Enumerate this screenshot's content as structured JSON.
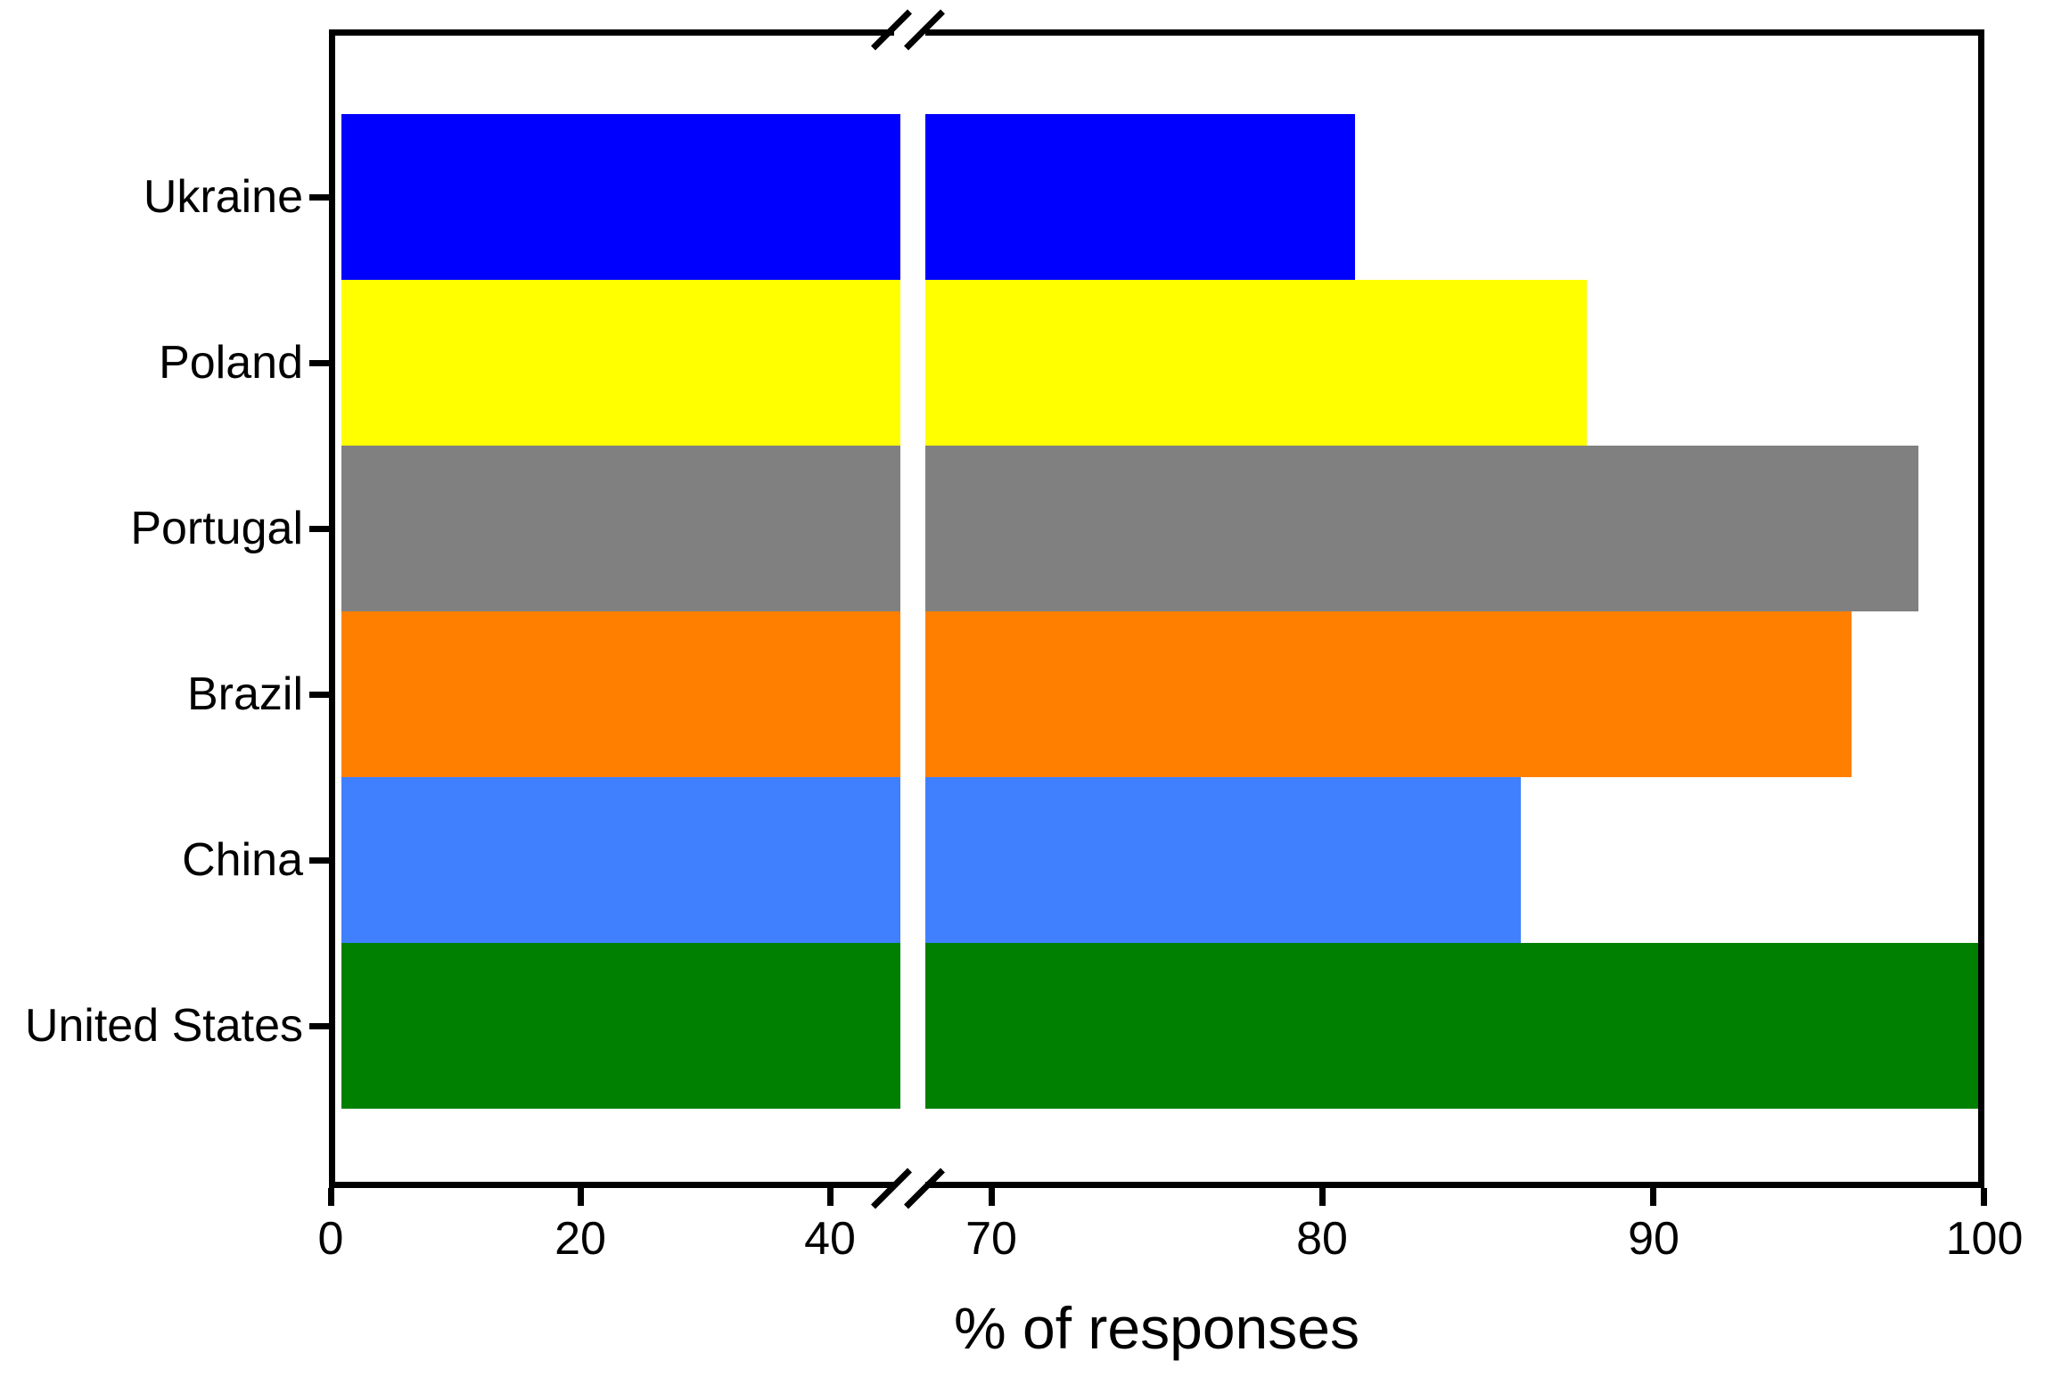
{
  "chart_data": {
    "type": "bar",
    "orientation": "horizontal",
    "title": "",
    "xlabel": "% of responses",
    "ylabel": "",
    "categories": [
      "Ukraine",
      "Poland",
      "Portugal",
      "Brazil",
      "China",
      "United States"
    ],
    "values": [
      81,
      88,
      98,
      96,
      86,
      100
    ],
    "bar_colors": [
      "#0000FF",
      "#FFFF00",
      "#808080",
      "#FF8000",
      "#4080FF",
      "#008000"
    ],
    "axis_break": {
      "left_segment_range": [
        0,
        45
      ],
      "right_segment_range": [
        68,
        100
      ],
      "style": "double-slash"
    },
    "x_ticks_left": [
      0,
      20,
      40
    ],
    "x_ticks_right": [
      70,
      80,
      90,
      100
    ],
    "xlim": [
      0,
      100
    ],
    "grid": false,
    "legend": false,
    "frame_color": "#000000",
    "background_color": "#FFFFFF",
    "text_color": "#000000"
  }
}
